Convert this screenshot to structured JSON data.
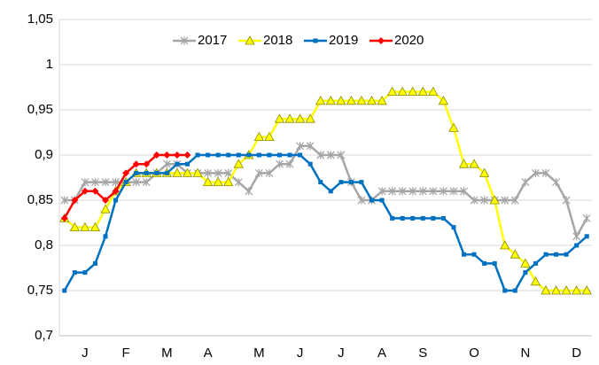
{
  "chart_data": {
    "type": "line",
    "categories": [
      null,
      null,
      "J",
      null,
      null,
      null,
      "F",
      null,
      null,
      null,
      "M",
      null,
      null,
      null,
      "A",
      null,
      null,
      null,
      null,
      "M",
      null,
      null,
      null,
      "J",
      null,
      null,
      null,
      "J",
      null,
      null,
      null,
      "A",
      null,
      null,
      null,
      "S",
      null,
      null,
      null,
      null,
      "O",
      null,
      null,
      null,
      null,
      "N",
      null,
      null,
      null,
      null,
      "D",
      null
    ],
    "series": [
      {
        "name": "2017",
        "color": "#a6a6a6",
        "marker": "star",
        "values": [
          0.85,
          0.85,
          0.87,
          0.87,
          0.87,
          0.87,
          0.87,
          0.87,
          0.87,
          0.88,
          0.89,
          0.89,
          0.88,
          0.88,
          0.88,
          0.88,
          0.88,
          0.87,
          0.86,
          0.88,
          0.88,
          0.89,
          0.89,
          0.91,
          0.91,
          0.9,
          0.9,
          0.9,
          0.87,
          0.85,
          0.85,
          0.86,
          0.86,
          0.86,
          0.86,
          0.86,
          0.86,
          0.86,
          0.86,
          0.86,
          0.85,
          0.85,
          0.85,
          0.85,
          0.85,
          0.87,
          0.88,
          0.88,
          0.87,
          0.85,
          0.81,
          0.83
        ]
      },
      {
        "name": "2018",
        "color": "#ffff00",
        "marker": "triangle",
        "values": [
          0.83,
          0.82,
          0.82,
          0.82,
          0.84,
          0.86,
          0.87,
          0.88,
          0.88,
          0.88,
          0.88,
          0.88,
          0.88,
          0.88,
          0.87,
          0.87,
          0.87,
          0.89,
          0.9,
          0.92,
          0.92,
          0.94,
          0.94,
          0.94,
          0.94,
          0.96,
          0.96,
          0.96,
          0.96,
          0.96,
          0.96,
          0.96,
          0.97,
          0.97,
          0.97,
          0.97,
          0.97,
          0.96,
          0.93,
          0.89,
          0.89,
          0.88,
          0.85,
          0.8,
          0.79,
          0.78,
          0.76,
          0.75,
          0.75,
          0.75,
          0.75,
          0.75
        ]
      },
      {
        "name": "2019",
        "color": "#0070c0",
        "marker": "square",
        "values": [
          0.75,
          0.77,
          0.77,
          0.78,
          0.81,
          0.85,
          0.87,
          0.88,
          0.88,
          0.88,
          0.88,
          0.89,
          0.89,
          0.9,
          0.9,
          0.9,
          0.9,
          0.9,
          0.9,
          0.9,
          0.9,
          0.9,
          0.9,
          0.9,
          0.89,
          0.87,
          0.86,
          0.87,
          0.87,
          0.87,
          0.85,
          0.85,
          0.83,
          0.83,
          0.83,
          0.83,
          0.83,
          0.83,
          0.82,
          0.79,
          0.79,
          0.78,
          0.78,
          0.75,
          0.75,
          0.77,
          0.78,
          0.79,
          0.79,
          0.79,
          0.8,
          0.81
        ]
      },
      {
        "name": "2020",
        "color": "#ff0000",
        "marker": "diamond",
        "values": [
          0.83,
          0.85,
          0.86,
          0.86,
          0.85,
          0.86,
          0.88,
          0.89,
          0.89,
          0.9,
          0.9,
          0.9,
          0.9,
          null,
          null,
          null,
          null,
          null,
          null,
          null,
          null,
          null,
          null,
          null,
          null,
          null,
          null,
          null,
          null,
          null,
          null,
          null,
          null,
          null,
          null,
          null,
          null,
          null,
          null,
          null,
          null,
          null,
          null,
          null,
          null,
          null,
          null,
          null,
          null,
          null,
          null,
          null
        ]
      }
    ],
    "ylim": [
      0.7,
      1.05
    ],
    "yticks": [
      {
        "value": 0.7,
        "label": "0,7"
      },
      {
        "value": 0.75,
        "label": "0,75"
      },
      {
        "value": 0.8,
        "label": "0,8"
      },
      {
        "value": 0.85,
        "label": "0,85"
      },
      {
        "value": 0.9,
        "label": "0,9"
      },
      {
        "value": 0.95,
        "label": "0,95"
      },
      1,
      {
        "value": 1.05,
        "label": "1,05"
      }
    ],
    "grid": true,
    "legend": "top"
  }
}
